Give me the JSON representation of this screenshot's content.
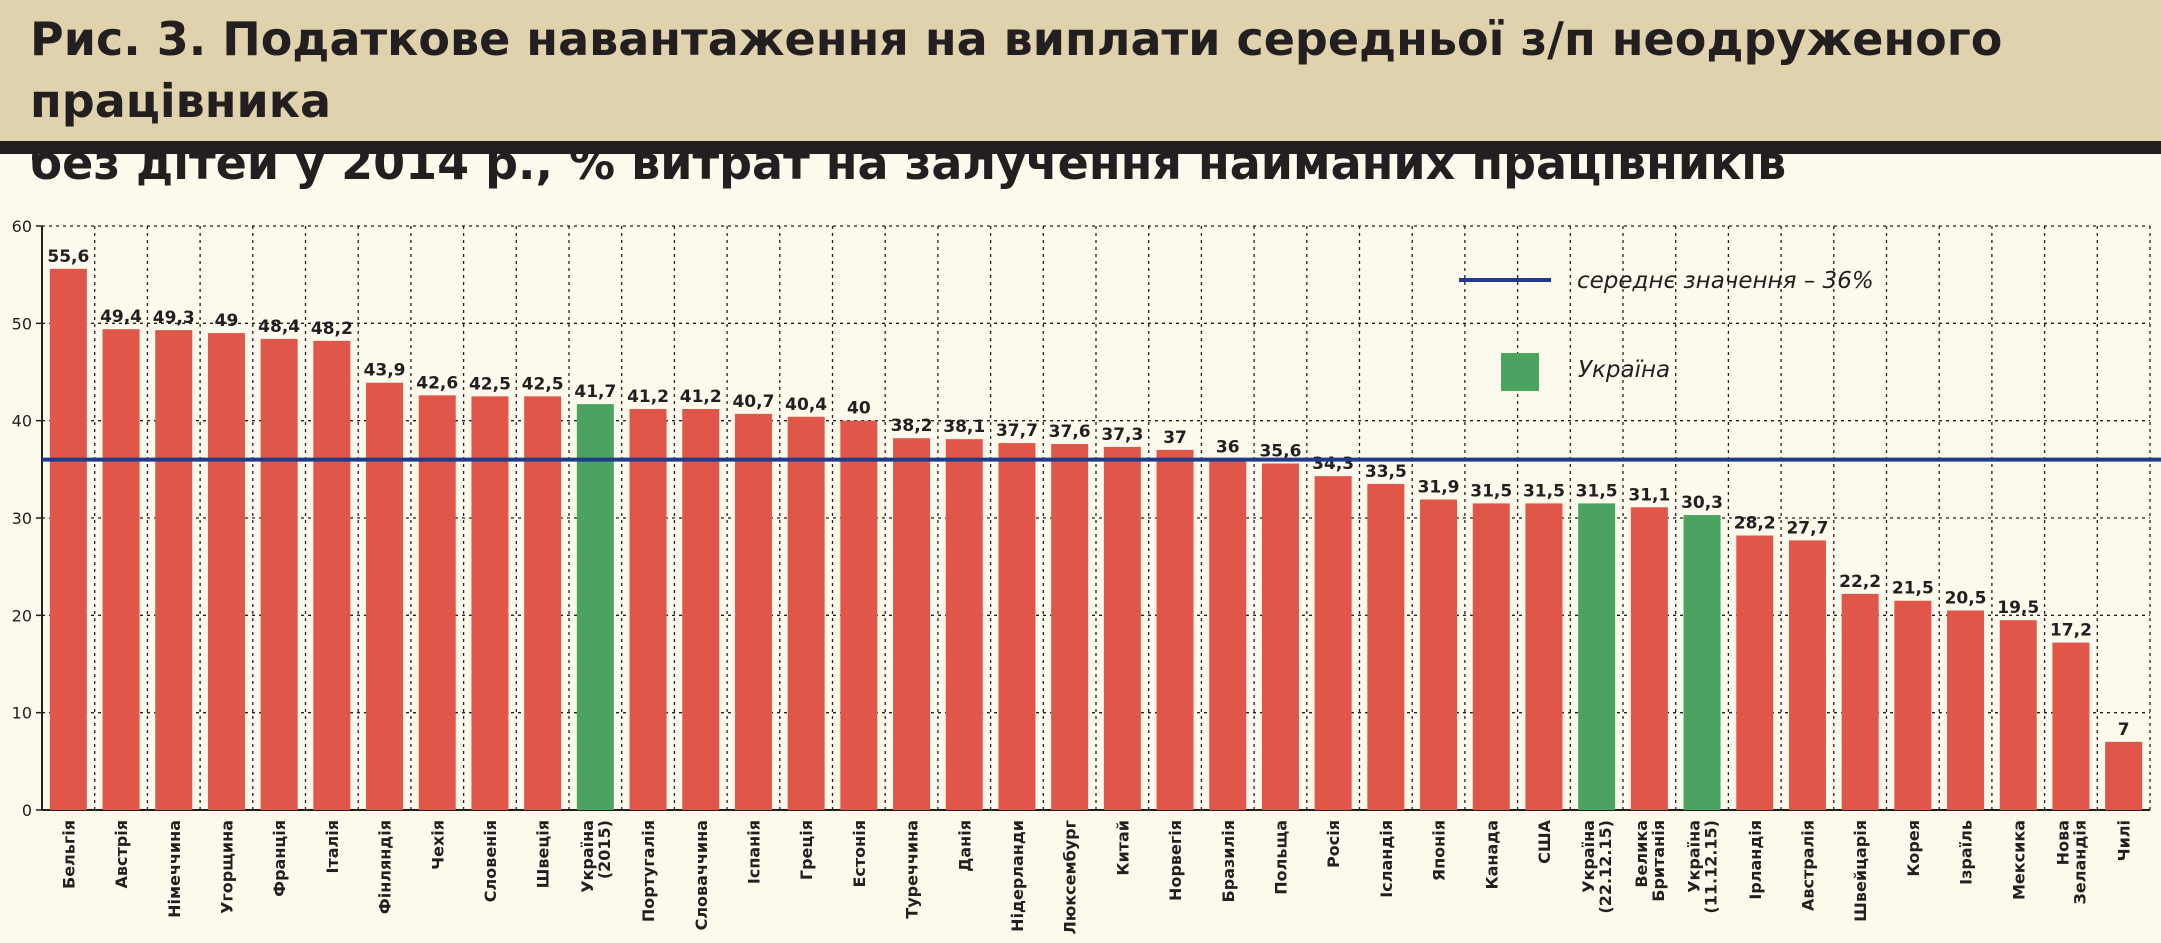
{
  "title": "Рис. 3. Податкове навантаження на виплати середньої з/п неодруженого працівника\nбез дітей у 2014 р., % витрат на залучення найманих працівників",
  "colors": {
    "header_bg": "#dfd2ad",
    "page_bg": "#fdf9ec",
    "bar": "#e0574a",
    "ukraine_bar": "#4aa35e",
    "mean_line": "#203b8c",
    "grid": "#231f20"
  },
  "chart_data": {
    "type": "bar",
    "ylim": [
      0,
      60
    ],
    "yticks": [
      0,
      10,
      20,
      30,
      40,
      50,
      60
    ],
    "grid": true,
    "categories": [
      "Бельгія",
      "Австрія",
      "Німеччина",
      "Угорщина",
      "Франція",
      "Італія",
      "Фінляндія",
      "Чехія",
      "Словенія",
      "Швеція",
      "Україна (2015)",
      "Португалія",
      "Словаччина",
      "Іспанія",
      "Греція",
      "Естонія",
      "Туреччина",
      "Данія",
      "Нідерланди",
      "Люксембург",
      "Китай",
      "Норвегія",
      "Бразилія",
      "Польща",
      "Росія",
      "Ісландія",
      "Японія",
      "Канада",
      "США",
      "Україна (22.12.15)",
      "Велика Британія",
      "Україна (11.12.15)",
      "Ірландія",
      "Австралія",
      "Швейцарія",
      "Корея",
      "Ізраїль",
      "Мексика",
      "Нова Зеландія",
      "Чилі"
    ],
    "values": [
      55.6,
      49.4,
      49.3,
      49,
      48.4,
      48.2,
      43.9,
      42.6,
      42.5,
      42.5,
      41.7,
      41.2,
      41.2,
      40.7,
      40.4,
      40,
      38.2,
      38.1,
      37.7,
      37.6,
      37.3,
      37,
      36,
      35.6,
      34.3,
      33.5,
      31.9,
      31.5,
      31.5,
      31.5,
      31.1,
      30.3,
      28.2,
      27.7,
      22.2,
      21.5,
      20.5,
      19.5,
      17.2,
      7
    ],
    "value_labels": [
      "55,6",
      "49,4",
      "49,3",
      "49",
      "48,4",
      "48,2",
      "43,9",
      "42,6",
      "42,5",
      "42,5",
      "41,7",
      "41,2",
      "41,2",
      "40,7",
      "40,4",
      "40",
      "38,2",
      "38,1",
      "37,7",
      "37,6",
      "37,3",
      "37",
      "36",
      "35,6",
      "34,3",
      "33,5",
      "31,9",
      "31,5",
      "31,5",
      "31,5",
      "31,1",
      "30,3",
      "28,2",
      "27,7",
      "22,2",
      "21,5",
      "20,5",
      "19,5",
      "17,2",
      "7"
    ],
    "highlight_indices": [
      10,
      29,
      31
    ],
    "mean": 36,
    "legend": {
      "placement": "top-right",
      "mean_label": "середнє значення – 36%",
      "highlight_label": "Україна"
    }
  }
}
